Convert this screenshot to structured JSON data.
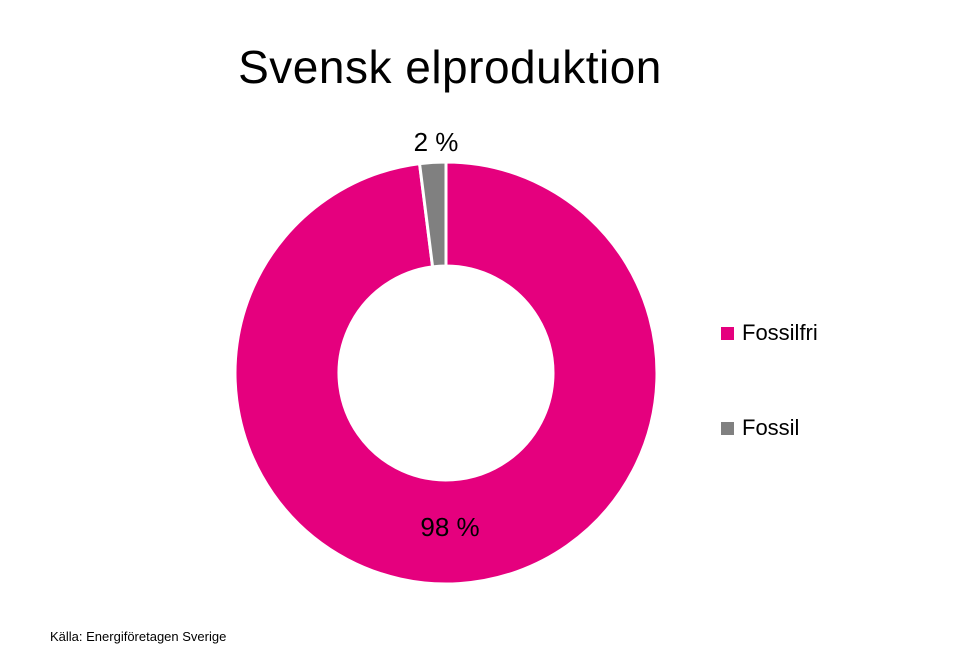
{
  "chart_data": {
    "type": "pie",
    "variant": "donut",
    "title": "Svensk elproduktion",
    "categories": [
      "Fossilfri",
      "Fossil"
    ],
    "values": [
      98,
      2
    ],
    "data_labels": [
      "98 %",
      "2 %"
    ],
    "colors": [
      "#E5007E",
      "#808080"
    ],
    "legend": "right",
    "legend_entries": [
      "Fossilfri",
      "Fossil"
    ]
  },
  "source": "Källa: Energiföretagen Sverige"
}
